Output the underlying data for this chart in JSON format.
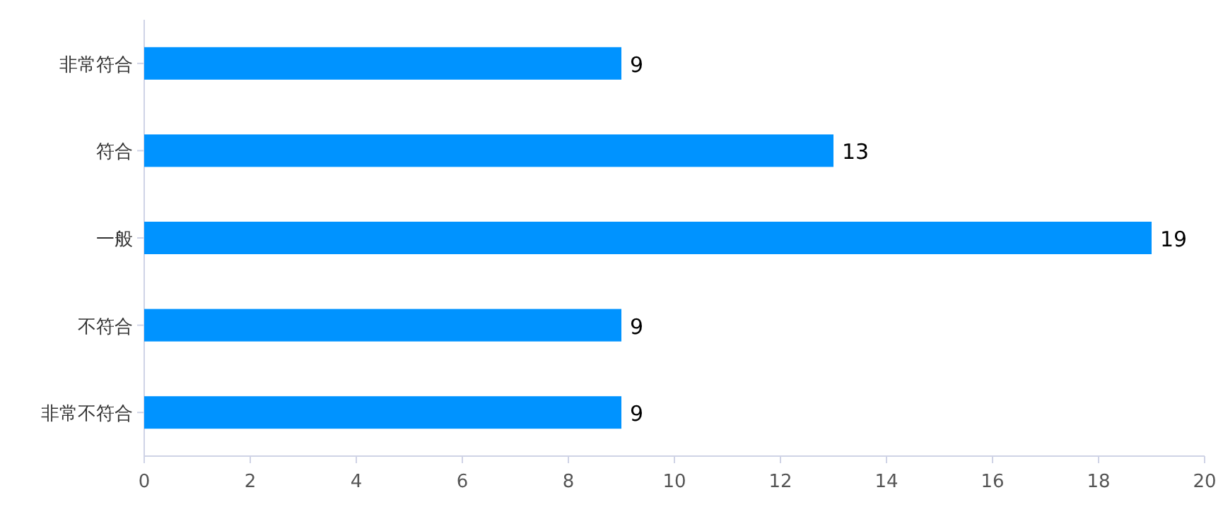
{
  "chart_data": {
    "type": "bar",
    "orientation": "horizontal",
    "categories": [
      "非常符合",
      "符合",
      "一般",
      "不符合",
      "非常不符合"
    ],
    "values": [
      9,
      13,
      19,
      9,
      9
    ],
    "color": "#0093ff",
    "xlim": [
      0,
      20
    ],
    "xticks": [
      0,
      2,
      4,
      6,
      8,
      10,
      12,
      14,
      16,
      18,
      20
    ],
    "data_labels": true,
    "grid": false
  }
}
